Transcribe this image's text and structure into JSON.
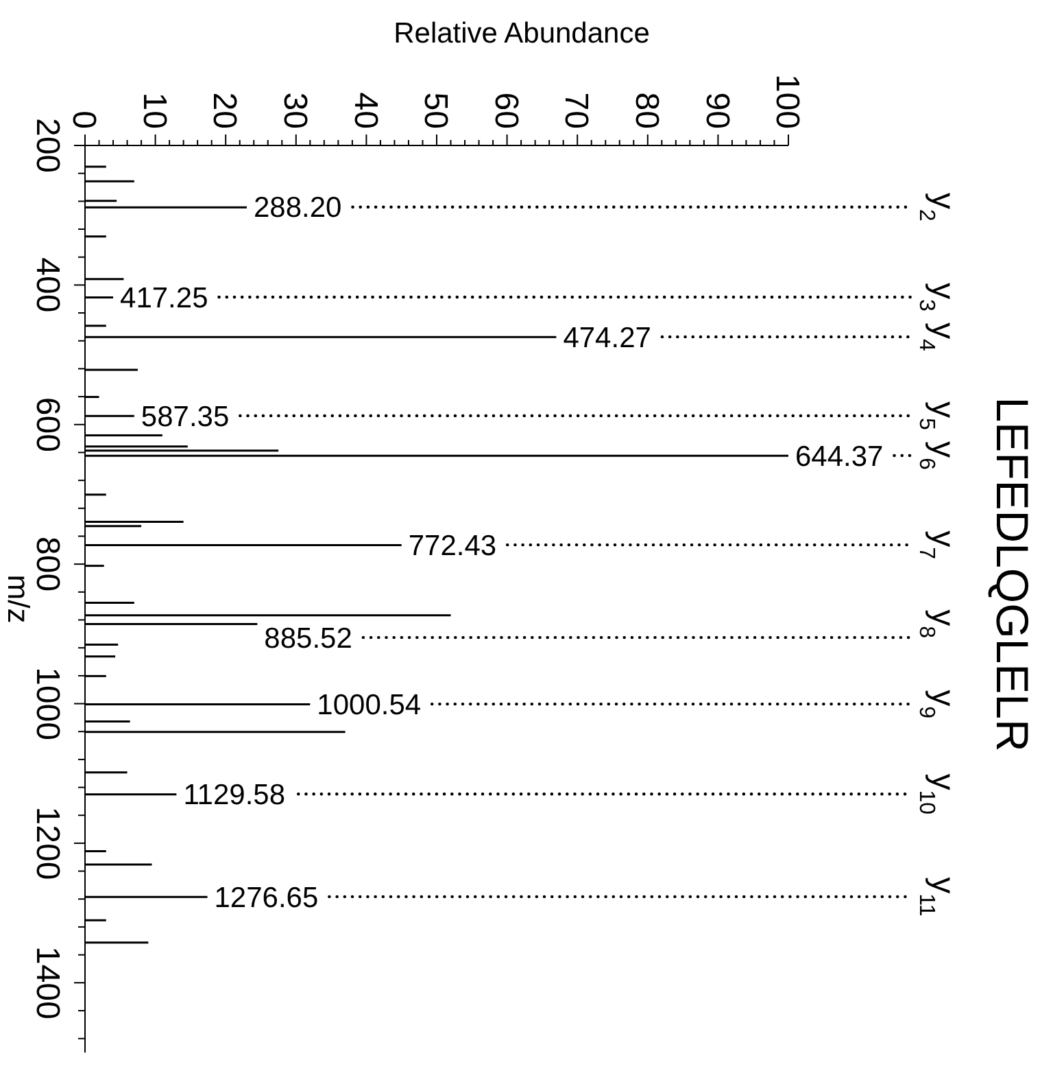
{
  "chart_data": {
    "type": "bar",
    "orientation": "horizontal",
    "title": "LEFEDLQGLELR",
    "xlabel": "Relative Abundance",
    "ylabel": "m/z",
    "x": [
      230,
      251,
      279,
      288.2,
      330,
      391,
      417.25,
      458,
      474.27,
      521,
      560,
      587.35,
      615,
      631,
      637,
      644.37,
      700,
      739,
      745,
      772.43,
      802,
      855,
      873,
      885.52,
      915,
      932,
      960,
      1000.54,
      1025,
      1040,
      1098,
      1129.58,
      1211,
      1230,
      1276.65,
      1310,
      1342
    ],
    "series": [
      {
        "color": "#000000",
        "values": [
          3,
          7,
          4.5,
          23,
          3,
          5.5,
          4,
          3,
          67,
          7.5,
          2,
          7,
          11,
          14.6,
          27.5,
          100,
          3,
          14,
          8,
          45,
          2.7,
          7,
          52,
          24.5,
          4.7,
          4.3,
          3,
          32,
          6.4,
          37,
          6,
          13,
          3,
          9.5,
          17.4,
          3,
          9
        ]
      }
    ],
    "ylim": [
      1500,
      200
    ],
    "yticks": [
      200,
      {
        "value": 240,
        "label": null
      },
      {
        "value": 280,
        "label": null
      },
      {
        "value": 320,
        "label": null
      },
      {
        "value": 360,
        "label": null
      },
      400,
      {
        "value": 440,
        "label": null
      },
      {
        "value": 480,
        "label": null
      },
      {
        "value": 520,
        "label": null
      },
      {
        "value": 560,
        "label": null
      },
      600,
      {
        "value": 640,
        "label": null
      },
      {
        "value": 680,
        "label": null
      },
      {
        "value": 720,
        "label": null
      },
      {
        "value": 760,
        "label": null
      },
      800,
      {
        "value": 840,
        "label": null
      },
      {
        "value": 880,
        "label": null
      },
      {
        "value": 920,
        "label": null
      },
      {
        "value": 960,
        "label": null
      },
      1000,
      {
        "value": 1040,
        "label": null
      },
      {
        "value": 1080,
        "label": null
      },
      {
        "value": 1120,
        "label": null
      },
      {
        "value": 1160,
        "label": null
      },
      1200,
      {
        "value": 1240,
        "label": null
      },
      {
        "value": 1280,
        "label": null
      },
      {
        "value": 1320,
        "label": null
      },
      {
        "value": 1360,
        "label": null
      },
      1400,
      {
        "value": 1440,
        "label": null
      },
      {
        "value": 1480,
        "label": null
      }
    ],
    "xlim": [
      0,
      100
    ],
    "xticks": [
      0,
      {
        "value": 2,
        "label": null
      },
      {
        "value": 4,
        "label": null
      },
      {
        "value": 6,
        "label": null
      },
      {
        "value": 8,
        "label": null
      },
      10,
      {
        "value": 12,
        "label": null
      },
      {
        "value": 14,
        "label": null
      },
      {
        "value": 16,
        "label": null
      },
      {
        "value": 18,
        "label": null
      },
      20,
      {
        "value": 22,
        "label": null
      },
      {
        "value": 24,
        "label": null
      },
      {
        "value": 26,
        "label": null
      },
      {
        "value": 28,
        "label": null
      },
      30,
      {
        "value": 32,
        "label": null
      },
      {
        "value": 34,
        "label": null
      },
      {
        "value": 36,
        "label": null
      },
      {
        "value": 38,
        "label": null
      },
      40,
      {
        "value": 42,
        "label": null
      },
      {
        "value": 44,
        "label": null
      },
      {
        "value": 46,
        "label": null
      },
      {
        "value": 48,
        "label": null
      },
      50,
      {
        "value": 52,
        "label": null
      },
      {
        "value": 54,
        "label": null
      },
      {
        "value": 56,
        "label": null
      },
      {
        "value": 58,
        "label": null
      },
      60,
      {
        "value": 62,
        "label": null
      },
      {
        "value": 64,
        "label": null
      },
      {
        "value": 66,
        "label": null
      },
      {
        "value": 68,
        "label": null
      },
      70,
      {
        "value": 72,
        "label": null
      },
      {
        "value": 74,
        "label": null
      },
      {
        "value": 76,
        "label": null
      },
      {
        "value": 78,
        "label": null
      },
      80,
      {
        "value": 82,
        "label": null
      },
      {
        "value": 84,
        "label": null
      },
      {
        "value": 86,
        "label": null
      },
      {
        "value": 88,
        "label": null
      },
      90,
      {
        "value": 92,
        "label": null
      },
      {
        "value": 94,
        "label": null
      },
      {
        "value": 96,
        "label": null
      },
      {
        "value": 98,
        "label": null
      },
      100
    ],
    "annotations": [
      {
        "text": "288.20",
        "x": 23,
        "y": 288.2
      },
      {
        "text": "417.25",
        "x": 4,
        "y": 417.25
      },
      {
        "text": "474.27",
        "x": 67,
        "y": 474.27
      },
      {
        "text": "587.35",
        "x": 7,
        "y": 587.35
      },
      {
        "text": "644.37",
        "x": 100,
        "y": 644.37
      },
      {
        "text": "772.43",
        "x": 45,
        "y": 772.43
      },
      {
        "text": "885.52",
        "x": 24.5,
        "y": 885.52
      },
      {
        "text": "1000.54",
        "x": 32,
        "y": 1000.54
      },
      {
        "text": "1129.58",
        "x": 13,
        "y": 1129.58
      },
      {
        "text": "1276.65",
        "x": 17.4,
        "y": 1276.65
      },
      "y$_{2}$",
      "y$_{3}$",
      "y$_{4}$",
      "y$_{5}$",
      "y$_{6}$",
      "y$_{7}$",
      "y$_{8}$",
      "y$_{9}$",
      "y$_{10}$",
      "y$_{11}$"
    ],
    "legend": false
  }
}
